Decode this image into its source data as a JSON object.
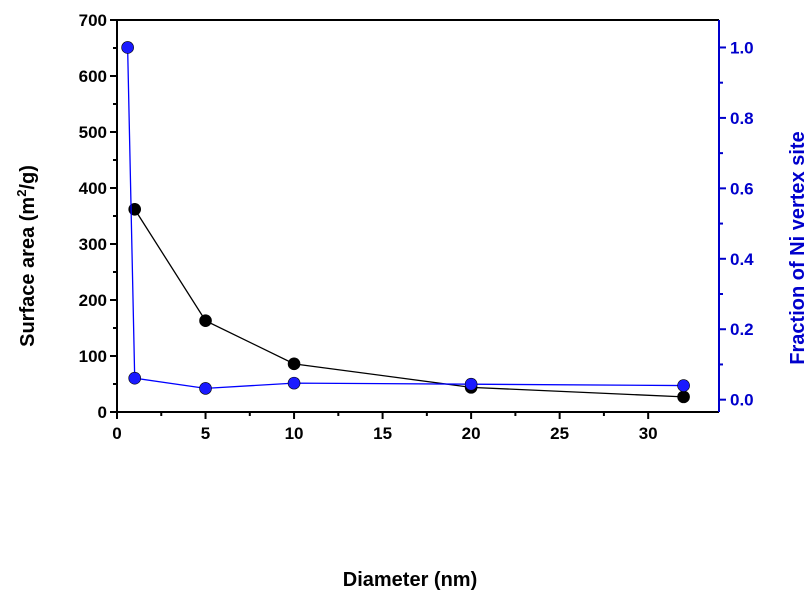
{
  "chart_data": {
    "type": "line",
    "title": "",
    "xlabel": "Diameter (nm)",
    "ylabel_left": {
      "pre": "Surface area (m",
      "sup": "2",
      "post": "/g)"
    },
    "ylabel_right": "Fraction of Ni vertex site",
    "xlim": [
      0,
      34
    ],
    "xticks": [
      0,
      5,
      10,
      15,
      20,
      25,
      30
    ],
    "ylim_left": [
      0,
      700
    ],
    "yticks_left": [
      0,
      100,
      200,
      300,
      400,
      500,
      600,
      700
    ],
    "ylim_right": [
      -0.035,
      1.078
    ],
    "yticks_right": [
      "0.0",
      "0.2",
      "0.4",
      "0.6",
      "0.8",
      "1.0"
    ],
    "grid": false,
    "legend": "none",
    "series": [
      {
        "axis": "left",
        "color": "#000000",
        "x": [
          1,
          5,
          10,
          20,
          32
        ],
        "y": [
          362,
          163,
          86,
          44,
          27
        ]
      },
      {
        "axis": "right",
        "color": "#0000ff",
        "x": [
          0.6,
          1,
          5,
          10,
          20,
          32
        ],
        "y": [
          1.0,
          0.061,
          0.032,
          0.047,
          0.044,
          0.04
        ]
      }
    ],
    "colors": {
      "axis_left": "#000000",
      "axis_right": "#0000cc",
      "marker_blue": "#1a1aff"
    }
  }
}
